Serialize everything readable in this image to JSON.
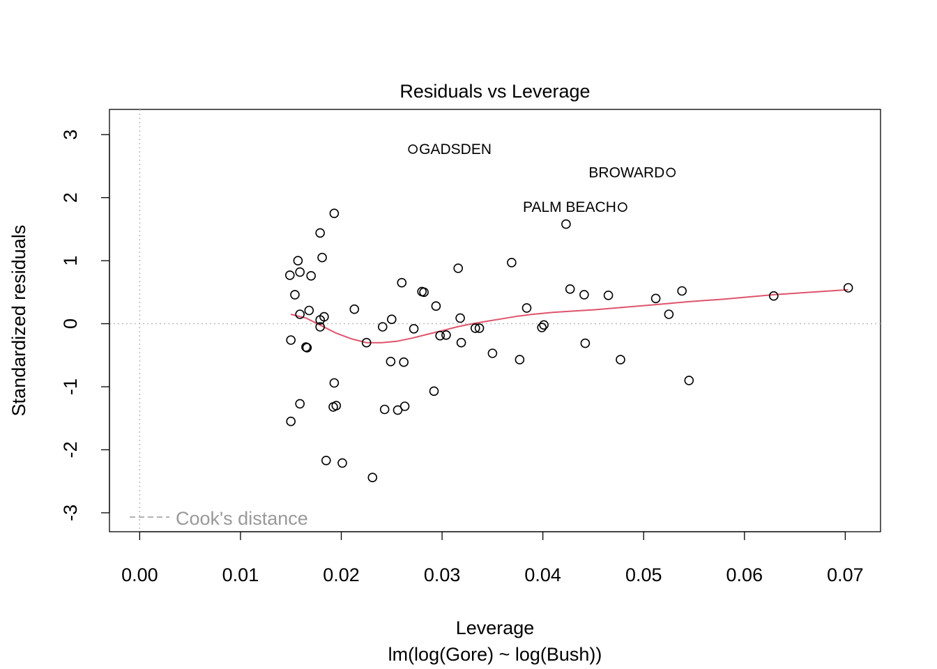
{
  "chart_data": {
    "type": "scatter",
    "title": "Residuals vs Leverage",
    "xlabel": "Leverage",
    "subtitle": "lm(log(Gore) ~ log(Bush))",
    "ylabel": "Standardized residuals",
    "xlim": [
      -0.003,
      0.0735
    ],
    "ylim": [
      -3.3,
      3.4
    ],
    "x_ticks": [
      0.0,
      0.01,
      0.02,
      0.03,
      0.04,
      0.05,
      0.06,
      0.07
    ],
    "x_tick_labels": [
      "0.00",
      "0.01",
      "0.02",
      "0.03",
      "0.04",
      "0.05",
      "0.06",
      "0.07"
    ],
    "y_ticks": [
      -3,
      -2,
      -1,
      0,
      1,
      2,
      3
    ],
    "y_tick_labels": [
      "-3",
      "-2",
      "-1",
      "0",
      "1",
      "2",
      "3"
    ],
    "grid": false,
    "legend": {
      "position": "bottom-left",
      "entries": [
        {
          "label": "Cook's distance",
          "style": "dashed",
          "color": "#999999"
        }
      ]
    },
    "reference_lines": [
      {
        "axis": "x",
        "value": 0,
        "style": "dotted",
        "color": "#bbbbbb"
      },
      {
        "axis": "y",
        "value": 0,
        "style": "dotted",
        "color": "#bbbbbb"
      }
    ],
    "points": [
      {
        "x": 0.0271,
        "y": 2.77,
        "label": "GADSDEN",
        "label_side": "right"
      },
      {
        "x": 0.0527,
        "y": 2.4,
        "label": "BROWARD",
        "label_side": "left"
      },
      {
        "x": 0.0479,
        "y": 1.85,
        "label": "PALM BEACH",
        "label_side": "left"
      },
      {
        "x": 0.0193,
        "y": 1.75
      },
      {
        "x": 0.0179,
        "y": 1.44
      },
      {
        "x": 0.0181,
        "y": 1.05
      },
      {
        "x": 0.0157,
        "y": 1.0
      },
      {
        "x": 0.0159,
        "y": 0.82
      },
      {
        "x": 0.0149,
        "y": 0.77
      },
      {
        "x": 0.017,
        "y": 0.76
      },
      {
        "x": 0.0154,
        "y": 0.46
      },
      {
        "x": 0.0168,
        "y": 0.21
      },
      {
        "x": 0.0159,
        "y": 0.15
      },
      {
        "x": 0.0183,
        "y": 0.11
      },
      {
        "x": 0.0179,
        "y": 0.06
      },
      {
        "x": 0.0179,
        "y": -0.05
      },
      {
        "x": 0.015,
        "y": -0.26
      },
      {
        "x": 0.0165,
        "y": -0.37
      },
      {
        "x": 0.0166,
        "y": -0.38
      },
      {
        "x": 0.0193,
        "y": -0.94
      },
      {
        "x": 0.0159,
        "y": -1.27
      },
      {
        "x": 0.0192,
        "y": -1.32
      },
      {
        "x": 0.0195,
        "y": -1.3
      },
      {
        "x": 0.015,
        "y": -1.55
      },
      {
        "x": 0.0185,
        "y": -2.17
      },
      {
        "x": 0.0201,
        "y": -2.21
      },
      {
        "x": 0.0213,
        "y": 0.23
      },
      {
        "x": 0.0225,
        "y": -0.3
      },
      {
        "x": 0.0231,
        "y": -2.44
      },
      {
        "x": 0.0241,
        "y": -0.05
      },
      {
        "x": 0.0243,
        "y": -1.36
      },
      {
        "x": 0.0249,
        "y": -0.6
      },
      {
        "x": 0.025,
        "y": 0.07
      },
      {
        "x": 0.0256,
        "y": -1.37
      },
      {
        "x": 0.026,
        "y": 0.65
      },
      {
        "x": 0.0262,
        "y": -0.61
      },
      {
        "x": 0.0263,
        "y": -1.31
      },
      {
        "x": 0.0272,
        "y": -0.08
      },
      {
        "x": 0.028,
        "y": 0.51
      },
      {
        "x": 0.0282,
        "y": 0.5
      },
      {
        "x": 0.0292,
        "y": -1.07
      },
      {
        "x": 0.0294,
        "y": 0.28
      },
      {
        "x": 0.0298,
        "y": -0.19
      },
      {
        "x": 0.0304,
        "y": -0.18
      },
      {
        "x": 0.0316,
        "y": 0.88
      },
      {
        "x": 0.0318,
        "y": 0.09
      },
      {
        "x": 0.0319,
        "y": -0.3
      },
      {
        "x": 0.0333,
        "y": -0.07
      },
      {
        "x": 0.0337,
        "y": -0.07
      },
      {
        "x": 0.035,
        "y": -0.47
      },
      {
        "x": 0.0369,
        "y": 0.97
      },
      {
        "x": 0.0377,
        "y": -0.57
      },
      {
        "x": 0.0384,
        "y": 0.25
      },
      {
        "x": 0.0399,
        "y": -0.06
      },
      {
        "x": 0.0401,
        "y": -0.02
      },
      {
        "x": 0.0423,
        "y": 1.58
      },
      {
        "x": 0.0427,
        "y": 0.55
      },
      {
        "x": 0.0441,
        "y": 0.46
      },
      {
        "x": 0.0442,
        "y": -0.31
      },
      {
        "x": 0.0465,
        "y": 0.45
      },
      {
        "x": 0.0477,
        "y": -0.57
      },
      {
        "x": 0.0512,
        "y": 0.4
      },
      {
        "x": 0.0525,
        "y": 0.15
      },
      {
        "x": 0.0538,
        "y": 0.52
      },
      {
        "x": 0.0545,
        "y": -0.9
      },
      {
        "x": 0.0629,
        "y": 0.44
      },
      {
        "x": 0.0703,
        "y": 0.57
      }
    ],
    "series": [
      {
        "kind": "smooth",
        "color": "#DF536B",
        "x": [
          0.015,
          0.0165,
          0.018,
          0.0195,
          0.021,
          0.0225,
          0.024,
          0.0255,
          0.027,
          0.0285,
          0.03,
          0.0315,
          0.033,
          0.0345,
          0.036,
          0.0375,
          0.039,
          0.041,
          0.043,
          0.045,
          0.048,
          0.051,
          0.0545,
          0.058,
          0.0629,
          0.0703
        ],
        "y": [
          0.15,
          0.09,
          -0.03,
          -0.15,
          -0.24,
          -0.3,
          -0.3,
          -0.28,
          -0.23,
          -0.17,
          -0.11,
          -0.05,
          0.0,
          0.04,
          0.08,
          0.12,
          0.15,
          0.18,
          0.2,
          0.22,
          0.26,
          0.3,
          0.35,
          0.39,
          0.46,
          0.54
        ]
      }
    ]
  }
}
